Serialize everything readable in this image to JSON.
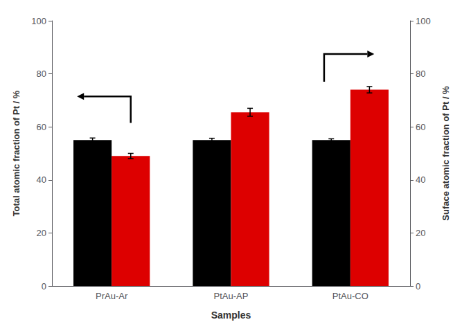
{
  "chart_data": {
    "type": "bar",
    "categories": [
      "PrAu-Ar",
      "PtAu-AP",
      "PtAu-CO"
    ],
    "xlabel": "Samples",
    "ylabel": "Total atomic fraction of Pt / %",
    "y2label": "Suface atomic fraction of Pt / %",
    "ylim": [
      0,
      100
    ],
    "yticks": [
      0,
      20,
      40,
      60,
      80,
      100
    ],
    "y2lim": [
      0,
      100
    ],
    "y2ticks": [
      0,
      20,
      40,
      60,
      80,
      100
    ],
    "grid": false,
    "series": [
      {
        "color": "#000000",
        "values": [
          55.0,
          55.0,
          55.0
        ],
        "errors": [
          0.8,
          0.7,
          0.5
        ]
      },
      {
        "color": "#dd0000",
        "values": [
          49.0,
          65.5,
          74.0
        ],
        "errors": [
          1.0,
          1.5,
          1.2
        ],
        "axis": "y2"
      }
    ]
  }
}
